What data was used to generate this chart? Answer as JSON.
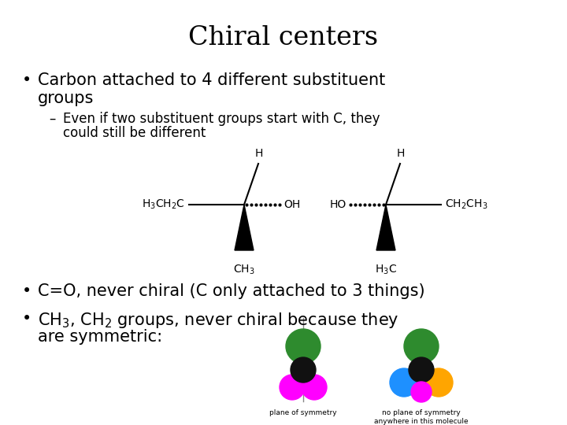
{
  "title": "Chiral centers",
  "title_fontsize": 24,
  "bg_color": "#ffffff",
  "text_color": "#000000",
  "bullet1_line1": "Carbon attached to 4 different substituent",
  "bullet1_line2": "groups",
  "bullet_fontsize": 15,
  "sub_bullet_line1": "Even if two substituent groups start with C, they",
  "sub_bullet_line2": "could still be different",
  "sub_fontsize": 12,
  "bullet2": "C=O, never chiral (C only attached to 3 things)",
  "bullet3_line1": "CH$_3$, CH$_2$ groups, never chiral because they",
  "bullet3_line2": "are symmetric:",
  "green_color": "#2e8b2e",
  "black_color": "#111111",
  "magenta_color": "#ff00ff",
  "blue_color": "#1e90ff",
  "orange_color": "#ffa500"
}
